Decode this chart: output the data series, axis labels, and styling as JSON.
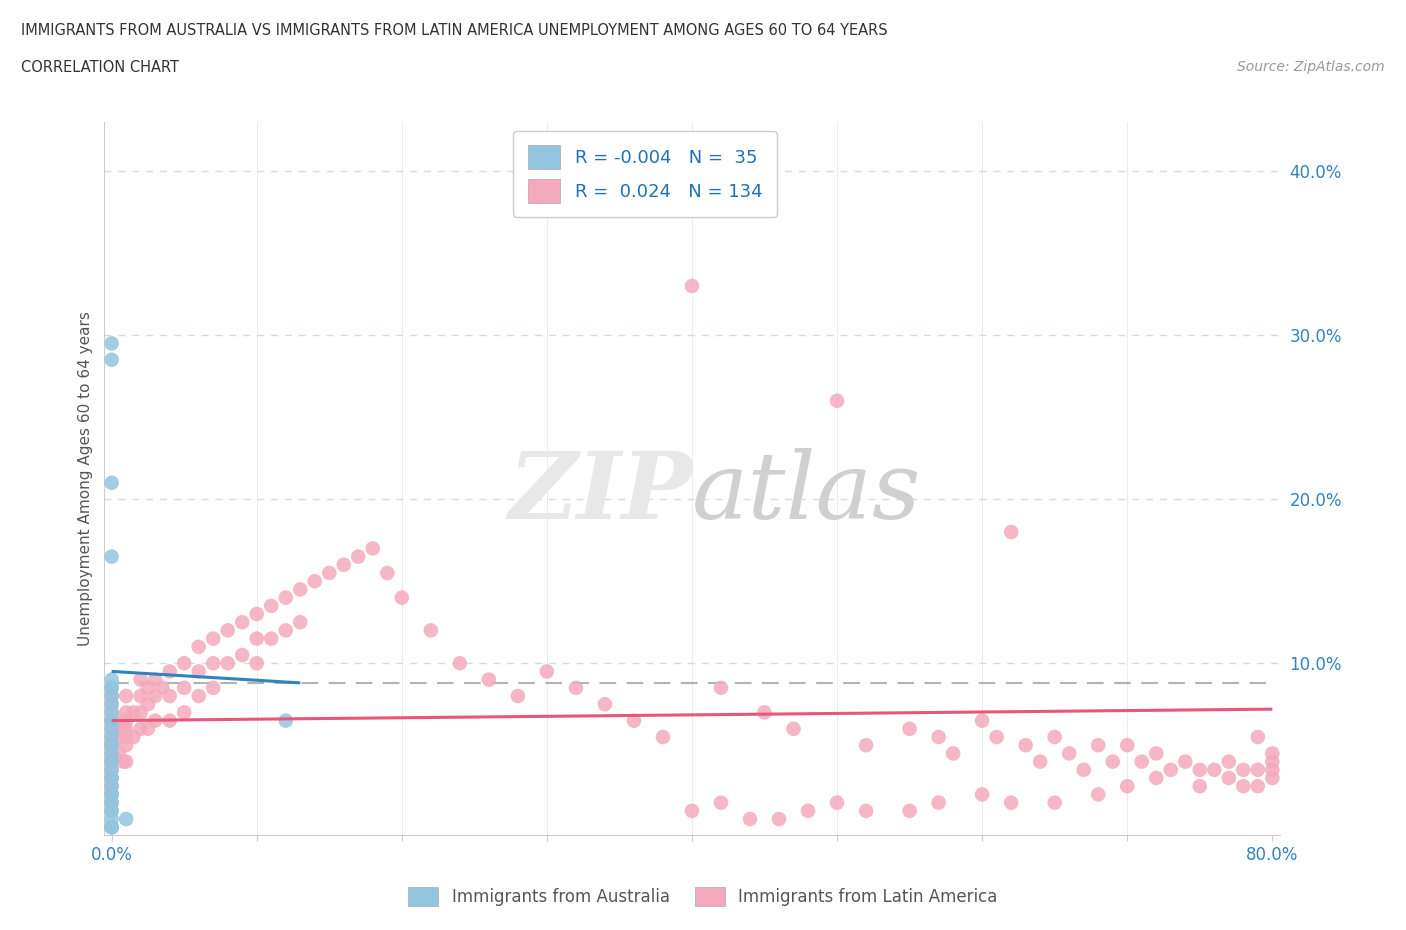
{
  "title_line1": "IMMIGRANTS FROM AUSTRALIA VS IMMIGRANTS FROM LATIN AMERICA UNEMPLOYMENT AMONG AGES 60 TO 64 YEARS",
  "title_line2": "CORRELATION CHART",
  "source_text": "Source: ZipAtlas.com",
  "ylabel": "Unemployment Among Ages 60 to 64 years",
  "xlim": [
    0.0,
    0.8
  ],
  "ylim": [
    0.0,
    0.42
  ],
  "color_australia": "#92c5de",
  "color_latin": "#f4a9bc",
  "color_trend_australia": "#3182bd",
  "color_trend_latin": "#e8567a",
  "color_dashed": "#aaaaaa",
  "color_grid": "#c8dff0",
  "R_australia": -0.004,
  "N_australia": 35,
  "R_latin": 0.024,
  "N_latin": 134,
  "background_color": "#ffffff",
  "aus_x": [
    0.0,
    0.0,
    0.0,
    0.0,
    0.0,
    0.0,
    0.0,
    0.0,
    0.0,
    0.0,
    0.0,
    0.0,
    0.0,
    0.0,
    0.0,
    0.0,
    0.0,
    0.0,
    0.0,
    0.0,
    0.0,
    0.0,
    0.0,
    0.0,
    0.0,
    0.0,
    0.0,
    0.0,
    0.0,
    0.0,
    0.01,
    0.0,
    0.12,
    0.0,
    0.0
  ],
  "aus_y": [
    0.295,
    0.285,
    0.21,
    0.165,
    0.09,
    0.085,
    0.085,
    0.08,
    0.075,
    0.07,
    0.065,
    0.065,
    0.06,
    0.055,
    0.05,
    0.05,
    0.045,
    0.04,
    0.04,
    0.035,
    0.03,
    0.03,
    0.025,
    0.02,
    0.02,
    0.015,
    0.015,
    0.01,
    0.01,
    0.005,
    0.005,
    0.0,
    0.065,
    0.0,
    0.0
  ],
  "lat_x": [
    0.0,
    0.0,
    0.0,
    0.0,
    0.0,
    0.0,
    0.0,
    0.0,
    0.0,
    0.0,
    0.0,
    0.0,
    0.0,
    0.0,
    0.0,
    0.005,
    0.005,
    0.005,
    0.008,
    0.008,
    0.01,
    0.01,
    0.01,
    0.01,
    0.01,
    0.01,
    0.01,
    0.015,
    0.015,
    0.02,
    0.02,
    0.02,
    0.02,
    0.025,
    0.025,
    0.025,
    0.03,
    0.03,
    0.03,
    0.035,
    0.04,
    0.04,
    0.04,
    0.05,
    0.05,
    0.05,
    0.06,
    0.06,
    0.06,
    0.07,
    0.07,
    0.07,
    0.08,
    0.08,
    0.09,
    0.09,
    0.1,
    0.1,
    0.1,
    0.11,
    0.11,
    0.12,
    0.12,
    0.13,
    0.13,
    0.14,
    0.15,
    0.16,
    0.17,
    0.18,
    0.19,
    0.2,
    0.22,
    0.24,
    0.26,
    0.28,
    0.3,
    0.32,
    0.34,
    0.36,
    0.38,
    0.4,
    0.42,
    0.45,
    0.47,
    0.5,
    0.52,
    0.55,
    0.57,
    0.58,
    0.6,
    0.61,
    0.62,
    0.63,
    0.64,
    0.65,
    0.66,
    0.67,
    0.68,
    0.69,
    0.7,
    0.71,
    0.72,
    0.73,
    0.74,
    0.75,
    0.76,
    0.77,
    0.78,
    0.79,
    0.79,
    0.8,
    0.8,
    0.8,
    0.8,
    0.79,
    0.78,
    0.77,
    0.75,
    0.72,
    0.7,
    0.68,
    0.65,
    0.62,
    0.6,
    0.57,
    0.55,
    0.52,
    0.5,
    0.48,
    0.46,
    0.44,
    0.42,
    0.4
  ],
  "lat_y": [
    0.08,
    0.075,
    0.07,
    0.065,
    0.06,
    0.055,
    0.05,
    0.05,
    0.045,
    0.04,
    0.04,
    0.035,
    0.03,
    0.025,
    0.02,
    0.065,
    0.055,
    0.045,
    0.06,
    0.04,
    0.08,
    0.07,
    0.065,
    0.06,
    0.055,
    0.05,
    0.04,
    0.07,
    0.055,
    0.09,
    0.08,
    0.07,
    0.06,
    0.085,
    0.075,
    0.06,
    0.09,
    0.08,
    0.065,
    0.085,
    0.095,
    0.08,
    0.065,
    0.1,
    0.085,
    0.07,
    0.11,
    0.095,
    0.08,
    0.115,
    0.1,
    0.085,
    0.12,
    0.1,
    0.125,
    0.105,
    0.13,
    0.115,
    0.1,
    0.135,
    0.115,
    0.14,
    0.12,
    0.145,
    0.125,
    0.15,
    0.155,
    0.16,
    0.165,
    0.17,
    0.155,
    0.14,
    0.12,
    0.1,
    0.09,
    0.08,
    0.095,
    0.085,
    0.075,
    0.065,
    0.055,
    0.33,
    0.085,
    0.07,
    0.06,
    0.26,
    0.05,
    0.06,
    0.055,
    0.045,
    0.065,
    0.055,
    0.18,
    0.05,
    0.04,
    0.055,
    0.045,
    0.035,
    0.05,
    0.04,
    0.05,
    0.04,
    0.045,
    0.035,
    0.04,
    0.035,
    0.035,
    0.03,
    0.035,
    0.025,
    0.055,
    0.04,
    0.03,
    0.045,
    0.035,
    0.035,
    0.025,
    0.04,
    0.025,
    0.03,
    0.025,
    0.02,
    0.015,
    0.015,
    0.02,
    0.015,
    0.01,
    0.01,
    0.015,
    0.01,
    0.005,
    0.005,
    0.015,
    0.01
  ]
}
